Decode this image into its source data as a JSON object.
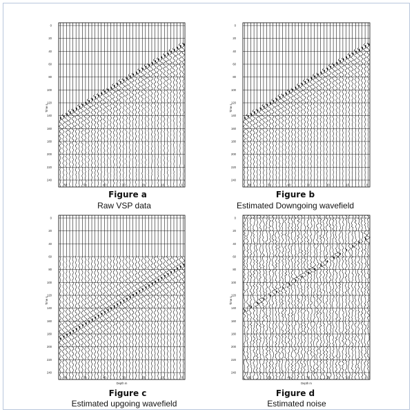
{
  "panels": [
    {
      "key": "a",
      "title": "Figure a",
      "caption": "Raw VSP data",
      "x_label": "",
      "y_label": "Time s",
      "x_ticks": [
        "60",
        "50",
        "40",
        "30",
        "20",
        "10",
        "0"
      ],
      "y_ticks": [
        "0",
        "20",
        "40",
        "60",
        "80",
        "100",
        "120",
        "140",
        "160",
        "180",
        "200",
        "220",
        "240"
      ],
      "mode": "raw"
    },
    {
      "key": "b",
      "title": "Figure b",
      "caption": "Estimated Downgoing  wavefield",
      "x_label": "",
      "y_label": "Time s",
      "x_ticks": [
        "60",
        "50",
        "40",
        "30",
        "20",
        "10",
        "0"
      ],
      "y_ticks": [
        "0",
        "20",
        "40",
        "60",
        "80",
        "100",
        "120",
        "140",
        "160",
        "180",
        "200",
        "220",
        "240"
      ],
      "mode": "down"
    },
    {
      "key": "c",
      "title": "Figure c",
      "caption": "Estimated upgoing wavefield",
      "x_label": "Depth m",
      "y_label": "Time s",
      "x_ticks": [
        "60",
        "50",
        "40",
        "30",
        "20",
        "10",
        "0"
      ],
      "y_ticks": [
        "0",
        "20",
        "40",
        "60",
        "80",
        "100",
        "120",
        "140",
        "160",
        "180",
        "200",
        "220",
        "240"
      ],
      "mode": "up"
    },
    {
      "key": "d",
      "title": "Figure d",
      "caption": "Estimated noise",
      "x_label": "Depth m",
      "y_label": "Time s",
      "x_ticks": [
        "60",
        "50",
        "40",
        "30",
        "20",
        "10",
        "0"
      ],
      "y_ticks": [
        "0",
        "20",
        "40",
        "60",
        "80",
        "100",
        "120",
        "140",
        "160",
        "180",
        "200",
        "220",
        "240"
      ],
      "mode": "noise"
    }
  ],
  "colors": {
    "frame_border": "#b8c6dc",
    "trace": "#000000",
    "grid": "#000000"
  }
}
